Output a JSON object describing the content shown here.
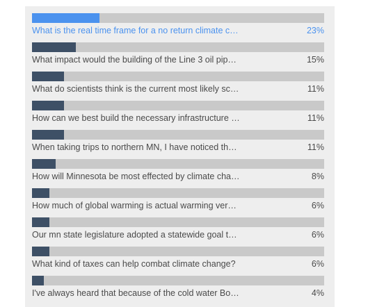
{
  "poll": {
    "items": [
      {
        "label": "What is the real time frame for a no return climate c…",
        "percent_label": "23%",
        "value": 23,
        "active": true
      },
      {
        "label": "What impact would the building of the Line 3 oil pip…",
        "percent_label": "15%",
        "value": 15,
        "active": false
      },
      {
        "label": "What do scientists think is the current most likely sc…",
        "percent_label": "11%",
        "value": 11,
        "active": false
      },
      {
        "label": "How can we best build the necessary infrastructure …",
        "percent_label": "11%",
        "value": 11,
        "active": false
      },
      {
        "label": "When taking trips to northern MN, I have noticed th…",
        "percent_label": "11%",
        "value": 11,
        "active": false
      },
      {
        "label": "How will Minnesota be most effected by climate cha…",
        "percent_label": "8%",
        "value": 8,
        "active": false
      },
      {
        "label": "How much of global warming is actual warming ver…",
        "percent_label": "6%",
        "value": 6,
        "active": false
      },
      {
        "label": "Our mn state legislature adopted a statewide goal t…",
        "percent_label": "6%",
        "value": 6,
        "active": false
      },
      {
        "label": "What kind of taxes can help combat climate change?",
        "percent_label": "6%",
        "value": 6,
        "active": false
      },
      {
        "label": "I've always heard that because of the cold water Bo…",
        "percent_label": "4%",
        "value": 4,
        "active": false
      }
    ]
  },
  "colors": {
    "panel_bg": "#eeeeee",
    "track": "#c9c9c9",
    "bar": "#3e5066",
    "highlight": "#4b92ee",
    "text": "#4a4a4a"
  }
}
